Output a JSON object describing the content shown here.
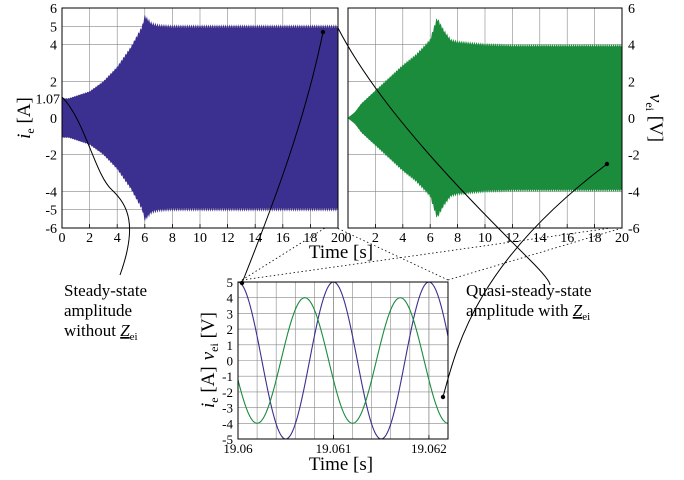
{
  "chart_data": [
    {
      "type": "area",
      "panel": "current-envelope",
      "title": "",
      "xlabel": "Time [s]",
      "ylabel": "i_e [A]",
      "xlim": [
        0,
        20
      ],
      "ylim": [
        -6,
        6
      ],
      "x_ticks": [
        "0",
        "2",
        "4",
        "6",
        "8",
        "10",
        "12",
        "14",
        "16",
        "18",
        "20"
      ],
      "y_ticks": [
        "-6",
        "-5",
        "-4",
        "-2",
        "0",
        "2",
        "4",
        "5",
        "6"
      ],
      "y_marker_label": "1.07",
      "grid": true,
      "color": "#3b2f8f",
      "series": [
        {
          "x": [
            0,
            0.5,
            1,
            2,
            3,
            4,
            5,
            5.8,
            6,
            6.5,
            7,
            8,
            10,
            12,
            14,
            16,
            18,
            19,
            20
          ],
          "values": [
            1.07,
            1.07,
            1.2,
            1.45,
            2.0,
            2.8,
            3.9,
            5.0,
            5.6,
            5.2,
            5.1,
            5.05,
            5.05,
            5.05,
            5.05,
            5.05,
            5.05,
            5.05,
            5.05
          ]
        }
      ]
    },
    {
      "type": "area",
      "panel": "voltage-envelope",
      "title": "",
      "xlabel": "",
      "ylabel": "v_ei [V]",
      "xlim": [
        0,
        20
      ],
      "ylim": [
        -6,
        6
      ],
      "x_ticks": [
        "0",
        "2",
        "4",
        "6",
        "8",
        "10",
        "12",
        "14",
        "16",
        "18",
        "20"
      ],
      "y_ticks": [
        "-6",
        "-4",
        "-2",
        "0",
        "2",
        "4",
        "6"
      ],
      "grid": true,
      "color": "#1a8c3c",
      "series": [
        {
          "x": [
            0,
            0.5,
            1,
            2,
            3,
            4,
            5,
            6,
            6.5,
            7,
            7.5,
            8,
            10,
            12,
            14,
            16,
            18,
            19,
            20
          ],
          "values": [
            0.0,
            0.3,
            0.8,
            1.5,
            2.2,
            2.9,
            3.5,
            4.3,
            5.5,
            4.8,
            4.3,
            4.2,
            4.05,
            4.0,
            4.0,
            4.0,
            4.0,
            4.0,
            4.0
          ]
        }
      ]
    },
    {
      "type": "line",
      "panel": "zoom",
      "title": "",
      "xlabel": "Time [s]",
      "ylabel": "i_e [A]   v_ei [V]",
      "xlim": [
        19.06,
        19.0622
      ],
      "ylim": [
        -5,
        5
      ],
      "x_ticks": [
        "19.06",
        "19.061",
        "19.062"
      ],
      "y_ticks": [
        "5",
        "4",
        "3",
        "2",
        "1",
        "0",
        "-1",
        "-2",
        "-3",
        "-4",
        "-5"
      ],
      "grid": true,
      "series": [
        {
          "color": "#3b2f8f",
          "amplitude": 5.0,
          "period": 0.001,
          "phase_x": 19.06,
          "shape": "cosine"
        },
        {
          "color": "#1a8c3c",
          "amplitude": 4.0,
          "period": 0.001,
          "phase_x": 19.0602,
          "shape": "cosine-inverted"
        }
      ]
    }
  ],
  "annotations": {
    "left_line1": "Steady-state",
    "left_line2": "amplitude",
    "left_line3": "without ",
    "left_z": "Z",
    "left_sub": "ei",
    "right_line1": "Quasi-steady-state",
    "right_line2": "amplitude with ",
    "right_z": "Z",
    "right_sub": "ei"
  },
  "labels": {
    "ie_i": "i",
    "ie_sub": "e",
    "ie_unit": " [A]",
    "vei_v": "v",
    "vei_sub": "ei",
    "vei_unit": " [V]",
    "time": "Time [s]"
  }
}
